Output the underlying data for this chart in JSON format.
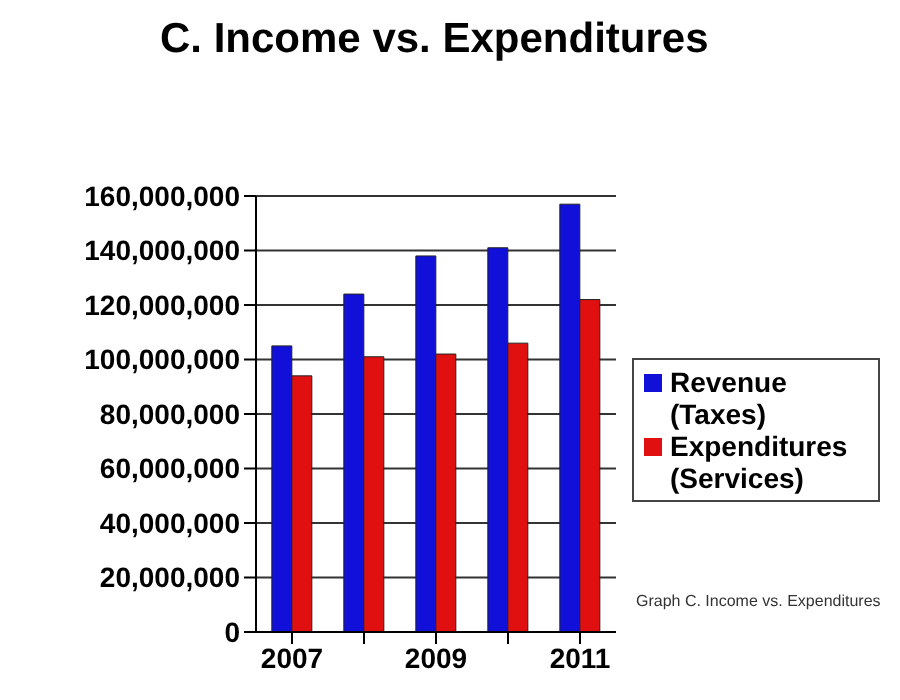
{
  "chart_data": {
    "type": "bar",
    "title": "C. Income vs. Expenditures",
    "categories": [
      "2007",
      null,
      "2009",
      null,
      "2011"
    ],
    "series": [
      {
        "name": "Revenue (Taxes)",
        "color": "#1010d8",
        "values": [
          105000000,
          124000000,
          138000000,
          141000000,
          157000000
        ]
      },
      {
        "name": "Expenditures (Services)",
        "color": "#e01010",
        "values": [
          94000000,
          101000000,
          102000000,
          106000000,
          122000000
        ]
      }
    ],
    "ylim": [
      0,
      160000000
    ],
    "yticks": [
      0,
      {
        "value": 20000000,
        "label": "20,000,000"
      },
      {
        "value": 40000000,
        "label": "40,000,000"
      },
      {
        "value": 60000000,
        "label": "60,000,000"
      },
      {
        "value": 80000000,
        "label": "80,000,000"
      },
      {
        "value": 100000000,
        "label": "100,000,000"
      },
      {
        "value": 120000000,
        "label": "120,000,000"
      },
      {
        "value": 140000000,
        "label": "140,000,000"
      },
      {
        "value": 160000000,
        "label": "160,000,000"
      }
    ],
    "grid": "y",
    "legend": "right",
    "annotations": [
      "Graph C. Income vs. Expenditures"
    ]
  }
}
